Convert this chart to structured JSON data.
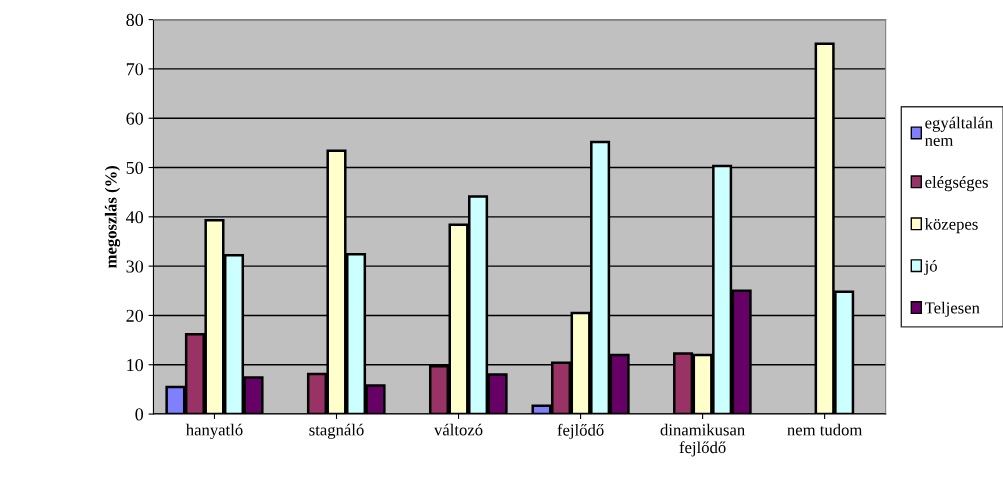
{
  "chart_data": {
    "type": "bar",
    "ylabel": "megoszlás (%)",
    "categories": [
      "hanyatló",
      "stagnáló",
      "változó",
      "fejlődő",
      "dinamikusan\nfejlődő",
      "nem tudom"
    ],
    "series": [
      {
        "name": "egyáltalán\nnem",
        "color": "#8080ff",
        "values": [
          5.5,
          null,
          null,
          1.7,
          null,
          null
        ]
      },
      {
        "name": "elégséges",
        "color": "#993366",
        "values": [
          16.2,
          8.1,
          9.7,
          10.4,
          12.3,
          null
        ]
      },
      {
        "name": "közepes",
        "color": "#ffffcc",
        "values": [
          39.3,
          53.4,
          38.4,
          20.5,
          12.0,
          75.1
        ]
      },
      {
        "name": "jó",
        "color": "#ccffff",
        "values": [
          32.2,
          32.4,
          44.1,
          55.2,
          50.3,
          24.8
        ]
      },
      {
        "name": "Teljesen",
        "color": "#660066",
        "values": [
          7.4,
          5.8,
          8.0,
          12.0,
          25.0,
          null
        ]
      }
    ],
    "ylim": [
      0,
      80
    ],
    "yticks": [
      0,
      10,
      20,
      30,
      40,
      50,
      60,
      70,
      80
    ],
    "grid": "y",
    "legend": "right"
  }
}
